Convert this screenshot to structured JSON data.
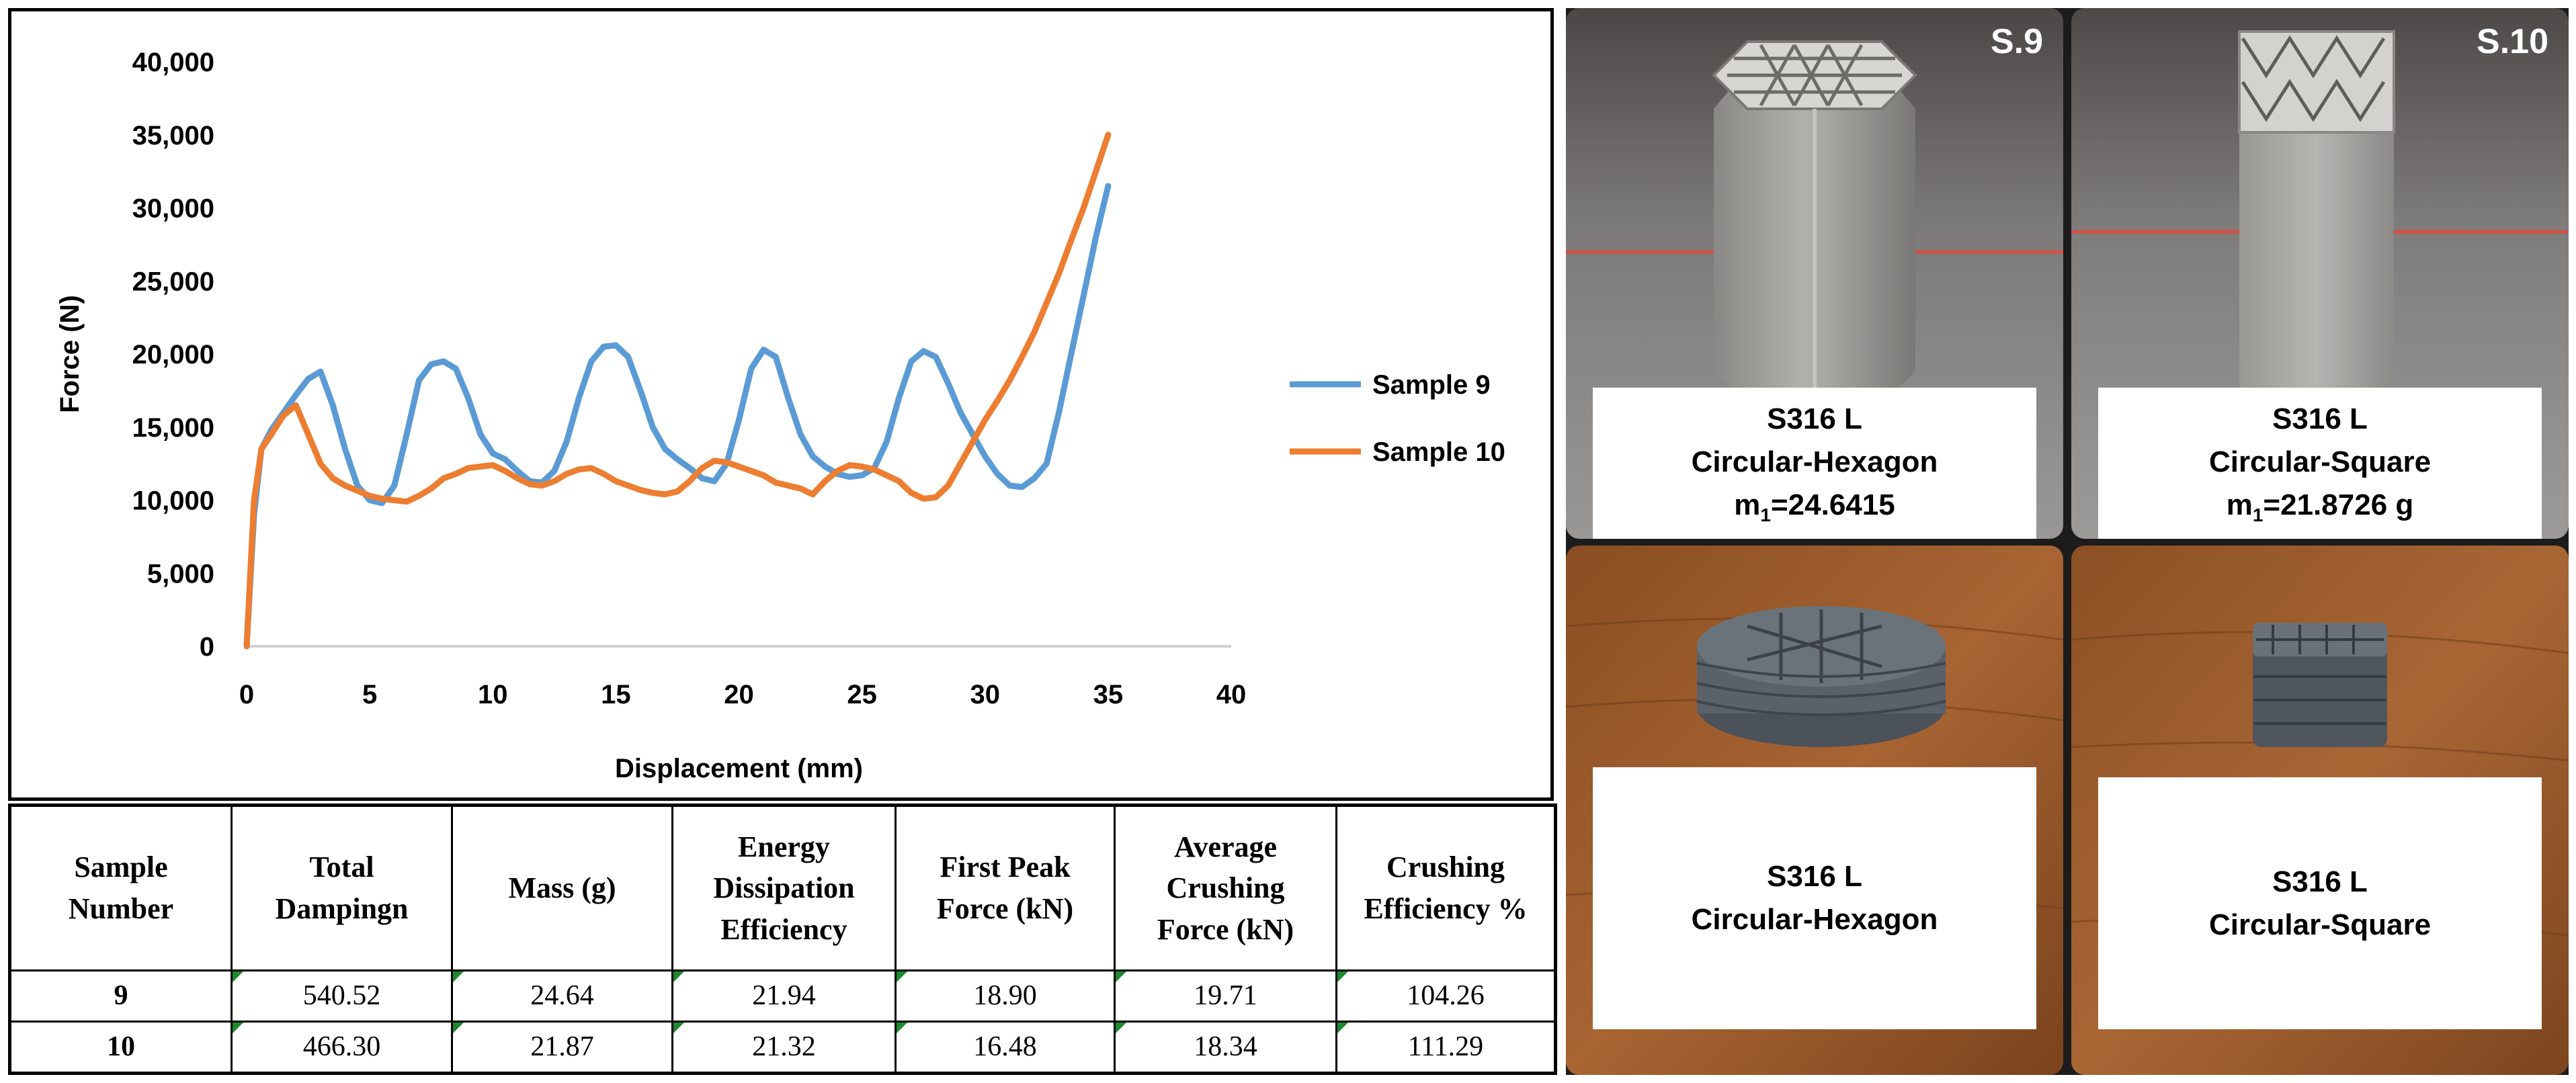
{
  "chart_data": {
    "type": "line",
    "title": "",
    "xlabel": "Displacement (mm)",
    "ylabel": "Force (N)",
    "xlim": [
      0,
      40
    ],
    "ylim": [
      0,
      40000
    ],
    "x_ticks": [
      "0",
      "5",
      "10",
      "15",
      "20",
      "25",
      "30",
      "35",
      "40"
    ],
    "y_ticks": [
      "0",
      "5,000",
      "10,000",
      "15,000",
      "20,000",
      "25,000",
      "30,000",
      "35,000",
      "40,000"
    ],
    "legend_position": "right",
    "series": [
      {
        "name": "Sample 9",
        "color": "#5b9bd5",
        "points": [
          [
            0,
            0
          ],
          [
            0.3,
            9000
          ],
          [
            0.6,
            13500
          ],
          [
            1,
            14800
          ],
          [
            1.5,
            16000
          ],
          [
            2,
            17200
          ],
          [
            2.5,
            18300
          ],
          [
            3,
            18800
          ],
          [
            3.5,
            16500
          ],
          [
            4,
            13500
          ],
          [
            4.5,
            11000
          ],
          [
            5,
            10000
          ],
          [
            5.5,
            9800
          ],
          [
            6,
            11000
          ],
          [
            6.5,
            14500
          ],
          [
            7,
            18200
          ],
          [
            7.5,
            19300
          ],
          [
            8,
            19500
          ],
          [
            8.5,
            19000
          ],
          [
            9,
            17000
          ],
          [
            9.5,
            14500
          ],
          [
            10,
            13200
          ],
          [
            10.5,
            12800
          ],
          [
            11,
            12000
          ],
          [
            11.5,
            11300
          ],
          [
            12,
            11200
          ],
          [
            12.5,
            12000
          ],
          [
            13,
            14000
          ],
          [
            13.5,
            17000
          ],
          [
            14,
            19500
          ],
          [
            14.5,
            20500
          ],
          [
            15,
            20600
          ],
          [
            15.5,
            19800
          ],
          [
            16,
            17500
          ],
          [
            16.5,
            15000
          ],
          [
            17,
            13500
          ],
          [
            17.5,
            12800
          ],
          [
            18,
            12200
          ],
          [
            18.5,
            11500
          ],
          [
            19,
            11300
          ],
          [
            19.5,
            12500
          ],
          [
            20,
            15500
          ],
          [
            20.5,
            19000
          ],
          [
            21,
            20300
          ],
          [
            21.5,
            19800
          ],
          [
            22,
            17000
          ],
          [
            22.5,
            14500
          ],
          [
            23,
            13000
          ],
          [
            23.5,
            12300
          ],
          [
            24,
            11800
          ],
          [
            24.5,
            11600
          ],
          [
            25,
            11700
          ],
          [
            25.5,
            12200
          ],
          [
            26,
            14000
          ],
          [
            26.5,
            17000
          ],
          [
            27,
            19500
          ],
          [
            27.5,
            20200
          ],
          [
            28,
            19800
          ],
          [
            28.5,
            18000
          ],
          [
            29,
            16000
          ],
          [
            29.5,
            14500
          ],
          [
            30,
            13000
          ],
          [
            30.5,
            11800
          ],
          [
            31,
            11000
          ],
          [
            31.5,
            10900
          ],
          [
            32,
            11500
          ],
          [
            32.5,
            12500
          ],
          [
            33,
            16000
          ],
          [
            33.5,
            20000
          ],
          [
            34,
            24000
          ],
          [
            34.5,
            28000
          ],
          [
            35,
            31500
          ]
        ]
      },
      {
        "name": "Sample 10",
        "color": "#ed7d31",
        "points": [
          [
            0,
            0
          ],
          [
            0.3,
            10000
          ],
          [
            0.6,
            13500
          ],
          [
            1,
            14500
          ],
          [
            1.5,
            15800
          ],
          [
            2,
            16500
          ],
          [
            2.5,
            14500
          ],
          [
            3,
            12500
          ],
          [
            3.5,
            11500
          ],
          [
            4,
            11000
          ],
          [
            5,
            10300
          ],
          [
            5.5,
            10100
          ],
          [
            6,
            10000
          ],
          [
            6.5,
            9900
          ],
          [
            7,
            10300
          ],
          [
            7.5,
            10800
          ],
          [
            8,
            11500
          ],
          [
            8.5,
            11800
          ],
          [
            9,
            12200
          ],
          [
            9.5,
            12300
          ],
          [
            10,
            12400
          ],
          [
            10.5,
            12000
          ],
          [
            11,
            11500
          ],
          [
            11.5,
            11100
          ],
          [
            12,
            11000
          ],
          [
            12.5,
            11300
          ],
          [
            13,
            11800
          ],
          [
            13.5,
            12100
          ],
          [
            14,
            12200
          ],
          [
            14.5,
            11800
          ],
          [
            15,
            11300
          ],
          [
            15.5,
            11000
          ],
          [
            16,
            10700
          ],
          [
            16.5,
            10500
          ],
          [
            17,
            10400
          ],
          [
            17.5,
            10600
          ],
          [
            18,
            11300
          ],
          [
            18.5,
            12200
          ],
          [
            19,
            12700
          ],
          [
            19.5,
            12600
          ],
          [
            20,
            12300
          ],
          [
            20.5,
            12000
          ],
          [
            21,
            11700
          ],
          [
            21.5,
            11200
          ],
          [
            22,
            11000
          ],
          [
            22.5,
            10800
          ],
          [
            23,
            10400
          ],
          [
            23.5,
            11300
          ],
          [
            24,
            12000
          ],
          [
            24.5,
            12400
          ],
          [
            25,
            12300
          ],
          [
            25.5,
            12100
          ],
          [
            26,
            11700
          ],
          [
            26.5,
            11300
          ],
          [
            27,
            10500
          ],
          [
            27.5,
            10100
          ],
          [
            28,
            10200
          ],
          [
            28.5,
            11000
          ],
          [
            29,
            12500
          ],
          [
            29.5,
            14000
          ],
          [
            30,
            15500
          ],
          [
            30.5,
            16800
          ],
          [
            31,
            18200
          ],
          [
            31.5,
            19800
          ],
          [
            32,
            21500
          ],
          [
            32.5,
            23500
          ],
          [
            33,
            25500
          ],
          [
            33.5,
            27800
          ],
          [
            34,
            30000
          ],
          [
            34.5,
            32500
          ],
          [
            35,
            35000
          ]
        ]
      }
    ]
  },
  "table": {
    "headers": [
      [
        "Sample",
        "Number"
      ],
      [
        "Total",
        "Dampingn"
      ],
      [
        "Mass (g)"
      ],
      [
        "Energy",
        "Dissipation",
        "Efficiency"
      ],
      [
        "First Peak",
        "Force (kN)"
      ],
      [
        "Average",
        "Crushing",
        "Force (kN)"
      ],
      [
        "Crushing",
        "Efficiency %"
      ]
    ],
    "rows": [
      [
        "9",
        "540.52",
        "24.64",
        "21.94",
        "18.90",
        "19.71",
        "104.26"
      ],
      [
        "10",
        "466.30",
        "21.87",
        "21.32",
        "16.48",
        "18.34",
        "111.29"
      ]
    ]
  },
  "photos": {
    "s9_tag": "S.9",
    "s10_tag": "S.10",
    "top_left_label": {
      "line1": "S316 L",
      "line2": "Circular-Hexagon",
      "line3_prefix": "m",
      "line3_sub": "1",
      "line3_rest": "=24.6415"
    },
    "top_right_label": {
      "line1": "S316 L",
      "line2": "Circular-Square",
      "line3_prefix": "m",
      "line3_sub": "1",
      "line3_rest": "=21.8726 g"
    },
    "bottom_left_label": {
      "line1": "S316 L",
      "line2": "Circular-Hexagon"
    },
    "bottom_right_label": {
      "line1": "S316 L",
      "line2": "Circular-Square"
    }
  }
}
